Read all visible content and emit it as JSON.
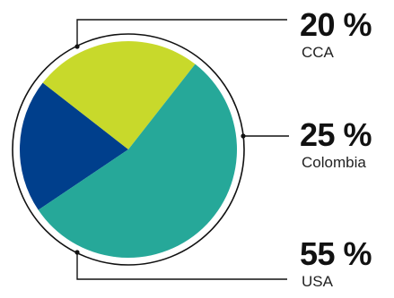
{
  "chart_data": {
    "type": "pie",
    "title": "",
    "slices": [
      {
        "label": "CCA",
        "value": 20,
        "value_label": "20 %",
        "color": "#003f8c"
      },
      {
        "label": "Colombia",
        "value": 25,
        "value_label": "25 %",
        "color": "#c8d92b"
      },
      {
        "label": "USA",
        "value": 55,
        "value_label": "55 %",
        "color": "#26a899"
      }
    ],
    "legend": "right, with leader lines"
  },
  "colors": {
    "outline": "#111111",
    "text": "#111111"
  }
}
